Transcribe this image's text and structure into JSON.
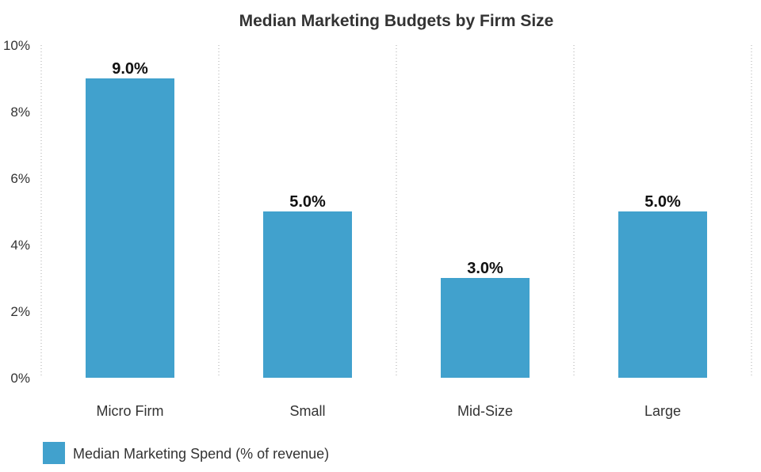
{
  "chart_data": {
    "type": "bar",
    "title": "Median Marketing Budgets by Firm Size",
    "categories": [
      "Micro Firm",
      "Small",
      "Mid-Size",
      "Large"
    ],
    "series": [
      {
        "name": "Median Marketing Spend (% of revenue)",
        "values": [
          9.0,
          5.0,
          3.0,
          5.0
        ],
        "data_labels": [
          "9.0%",
          "5.0%",
          "3.0%",
          "5.0%"
        ],
        "color": "#41a1cd"
      }
    ],
    "y_ticks": [
      0,
      2,
      4,
      6,
      8,
      10
    ],
    "y_tick_labels": [
      "0%",
      "2%",
      "4%",
      "6%",
      "8%",
      "10%"
    ],
    "ylim": [
      0,
      10
    ],
    "xlabel": "",
    "ylabel": "",
    "grid": "vertical dotted separators",
    "legend_position": "bottom-left"
  }
}
